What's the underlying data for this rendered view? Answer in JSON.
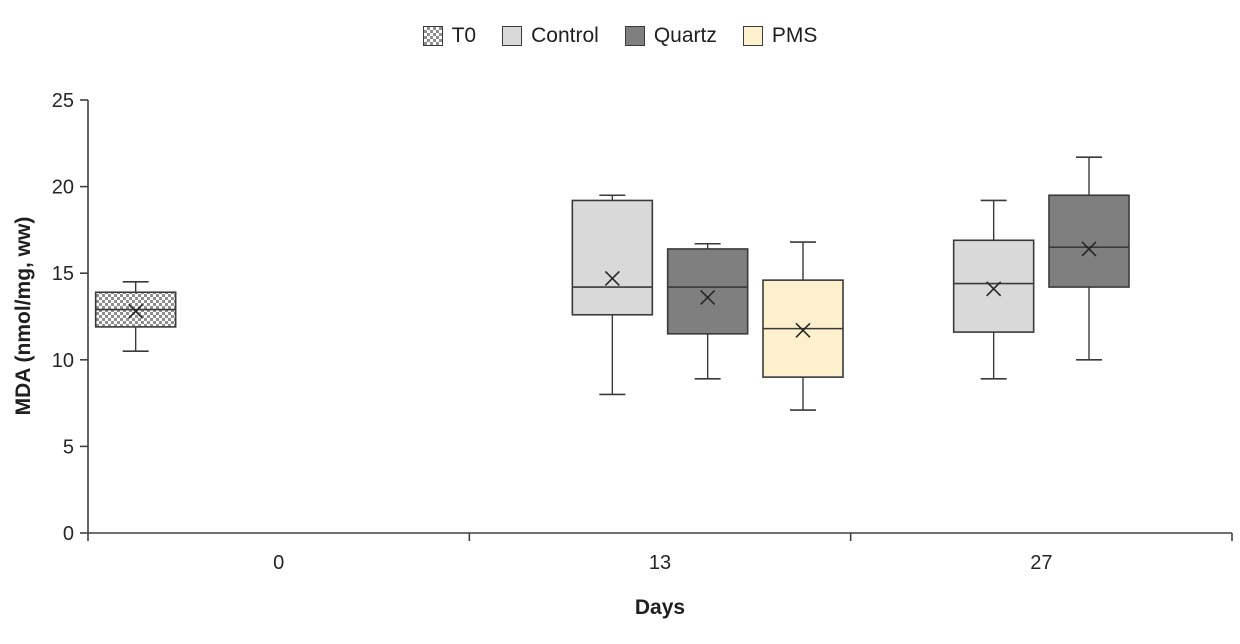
{
  "chart_data": {
    "type": "boxplot",
    "title": "",
    "xlabel": "Days",
    "ylabel": "MDA (nmol/mg, ww)",
    "ylim": [
      0,
      25
    ],
    "yticks": [
      0,
      5,
      10,
      15,
      20,
      25
    ],
    "categories": [
      "0",
      "13",
      "27"
    ],
    "legend_position": "top",
    "grid": false,
    "series": [
      {
        "name": "T0",
        "fill": "#d9d9d9",
        "pattern": "checker",
        "boxes": [
          {
            "category": 0,
            "whisker_low": 10.5,
            "q1": 11.9,
            "median": 12.9,
            "q3": 13.9,
            "whisker_high": 14.5,
            "mean": 12.8
          }
        ]
      },
      {
        "name": "Control",
        "fill": "#d9d9d9",
        "pattern": "solid",
        "boxes": [
          {
            "category": 1,
            "whisker_low": 8.0,
            "q1": 12.6,
            "median": 14.2,
            "q3": 19.2,
            "whisker_high": 19.5,
            "mean": 14.7
          },
          {
            "category": 2,
            "whisker_low": 8.9,
            "q1": 11.6,
            "median": 14.4,
            "q3": 16.9,
            "whisker_high": 19.2,
            "mean": 14.1
          }
        ]
      },
      {
        "name": "Quartz",
        "fill": "#7f7f7f",
        "pattern": "solid",
        "boxes": [
          {
            "category": 1,
            "whisker_low": 8.9,
            "q1": 11.5,
            "median": 14.2,
            "q3": 16.4,
            "whisker_high": 16.7,
            "mean": 13.6
          },
          {
            "category": 2,
            "whisker_low": 10.0,
            "q1": 14.2,
            "median": 16.5,
            "q3": 19.5,
            "whisker_high": 21.7,
            "mean": 16.4
          }
        ]
      },
      {
        "name": "PMS",
        "fill": "#fcf0cd",
        "pattern": "solid",
        "boxes": [
          {
            "category": 1,
            "whisker_low": 7.1,
            "q1": 9.0,
            "median": 11.8,
            "q3": 14.6,
            "whisker_high": 16.8,
            "mean": 11.7
          }
        ]
      }
    ],
    "colors": {
      "axis": "#404040",
      "text": "#262626",
      "box_border": "#3a3a3a",
      "mean_marker": "#262626",
      "checker_gray": "#8f8f8f"
    }
  }
}
